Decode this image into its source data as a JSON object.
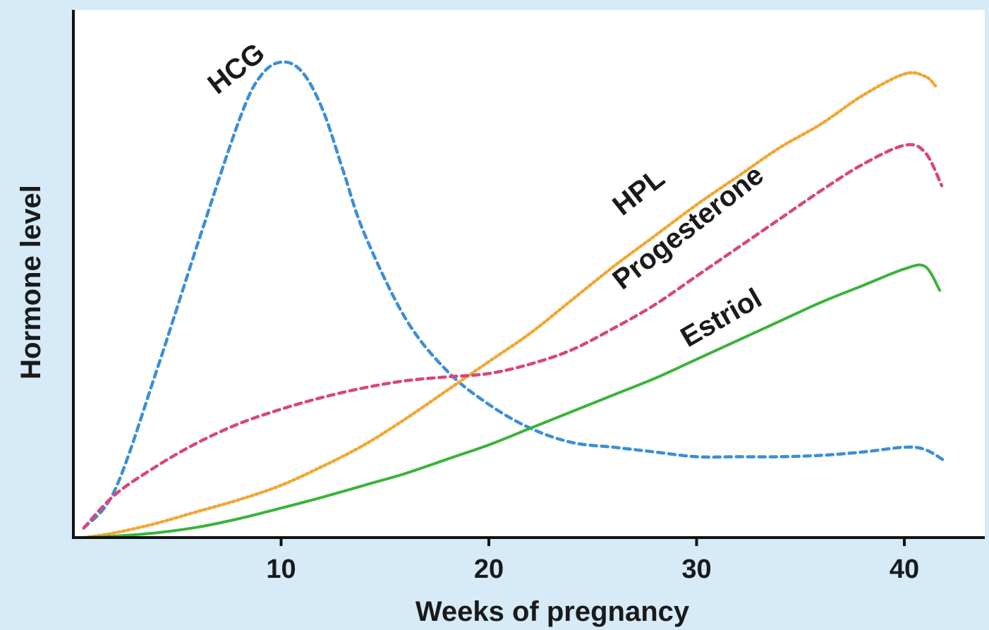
{
  "chart_data": {
    "type": "line",
    "xlabel": "Weeks of pregnancy",
    "ylabel": "Hormone level",
    "x_ticks": [
      10,
      20,
      30,
      40
    ],
    "xlim": [
      0,
      44
    ],
    "ylim": [
      0,
      100
    ],
    "grid": false,
    "legend": "none",
    "series": [
      {
        "name": "HCG",
        "color": "#3c8fd6",
        "style": "dashed",
        "x": [
          0.5,
          2,
          4,
          6,
          8,
          9,
          10,
          11,
          12,
          13,
          14,
          16,
          18,
          20,
          22,
          24,
          26,
          28,
          30,
          32,
          34,
          36,
          38,
          40,
          41,
          42
        ],
        "y": [
          2,
          10,
          35,
          62,
          88,
          97,
          100,
          98,
          90,
          77,
          64,
          46,
          35,
          28,
          23,
          20,
          19,
          18,
          17,
          17,
          17,
          17.3,
          18,
          19,
          18.5,
          16
        ]
      },
      {
        "name": "HPL",
        "color": "#f2a630",
        "style": "dotted",
        "x": [
          0.5,
          2,
          4,
          6,
          8,
          10,
          12,
          14,
          16,
          18,
          20,
          22,
          24,
          26,
          28,
          30,
          32,
          34,
          36,
          38,
          40,
          41,
          41.5
        ],
        "y": [
          0,
          1,
          3,
          5.5,
          8,
          11,
          15,
          19.5,
          25,
          31,
          37,
          43,
          50,
          57,
          63.5,
          70,
          76,
          82,
          87,
          93,
          97.5,
          97,
          95
        ]
      },
      {
        "name": "Progesterone",
        "color": "#d9467d",
        "style": "dashed",
        "x": [
          0.5,
          2,
          4,
          6,
          8,
          10,
          12,
          14,
          16,
          18,
          20,
          22,
          24,
          26,
          28,
          30,
          32,
          34,
          36,
          38,
          40,
          41,
          41.8
        ],
        "y": [
          2,
          9,
          15,
          20,
          24,
          27,
          29.5,
          31.5,
          33,
          33.8,
          34.5,
          36.5,
          39.5,
          44,
          49,
          55,
          61,
          67,
          73,
          78.5,
          82.5,
          81,
          74
        ]
      },
      {
        "name": "Estriol",
        "color": "#3ab33a",
        "style": "solid",
        "x": [
          0.5,
          2,
          4,
          6,
          8,
          10,
          12,
          14,
          16,
          18,
          20,
          22,
          24,
          26,
          28,
          30,
          32,
          34,
          36,
          38,
          40,
          41,
          41.7
        ],
        "y": [
          0,
          0.3,
          1,
          2.2,
          4,
          6.2,
          8.5,
          11,
          13.5,
          16.5,
          19.5,
          23,
          26.5,
          30,
          33.5,
          37.5,
          41.5,
          45.5,
          49.5,
          53,
          56.5,
          57,
          52
        ]
      }
    ]
  }
}
